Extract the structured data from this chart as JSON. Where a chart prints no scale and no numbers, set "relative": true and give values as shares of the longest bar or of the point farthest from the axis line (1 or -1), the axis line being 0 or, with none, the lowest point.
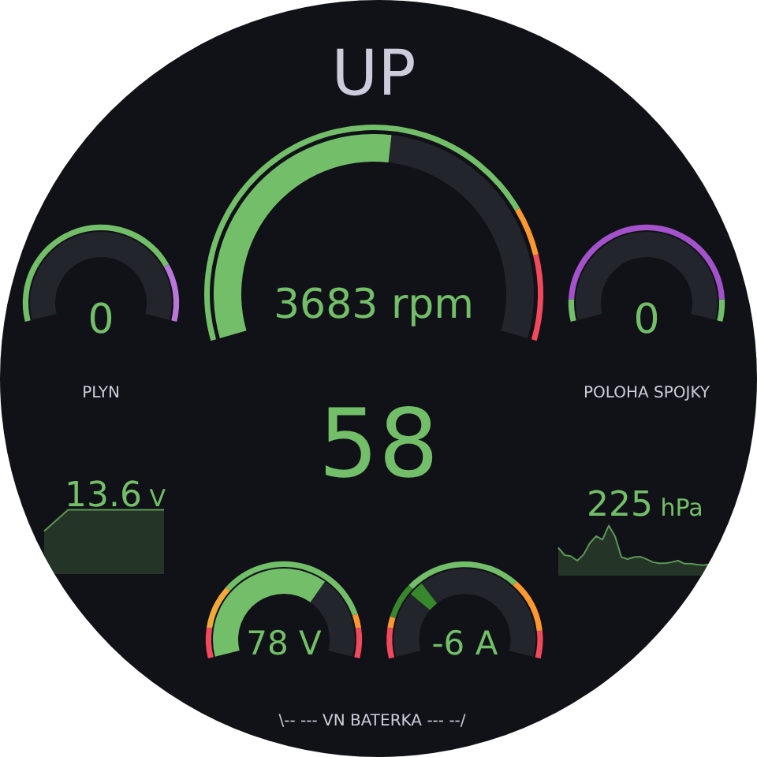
{
  "chart_data": [
    {
      "type": "donut",
      "title": "UP",
      "series": [
        {
          "values": [
            47,
            53
          ],
          "colors": [
            "#22252b",
            "#73bf69"
          ]
        },
        {
          "values": [
            14,
            8,
            78
          ],
          "colors": [
            "#f2495c",
            "#ff9830",
            "#73bf69"
          ]
        }
      ],
      "annotations": [
        "3683 rpm"
      ]
    },
    {
      "type": "donut",
      "title": "PLYN",
      "series": [
        {
          "values": [
            100
          ],
          "colors": [
            "#22252b"
          ]
        },
        {
          "values": [
            21,
            79
          ],
          "colors": [
            "#b877d9",
            "#73bf69"
          ]
        }
      ],
      "annotations": [
        "0"
      ]
    },
    {
      "type": "donut",
      "title": "POLOHA SPOJKY",
      "series": [
        {
          "values": [
            100
          ],
          "colors": [
            "#22252b"
          ]
        },
        {
          "values": [
            8,
            84,
            8
          ],
          "colors": [
            "#73bf69",
            "#a352cc",
            "#73bf69"
          ]
        }
      ],
      "annotations": [
        "0"
      ]
    },
    {
      "type": "other",
      "values": [
        58
      ],
      "data_labels": true,
      "color": "#73bf69"
    },
    {
      "type": "area",
      "relative": true,
      "categories": [
        null,
        null,
        null,
        null,
        null,
        null
      ],
      "values": [
        0.67,
        1,
        1,
        1,
        1,
        1
      ],
      "color": "#73bf69",
      "annotations": [
        "13.6 V"
      ]
    },
    {
      "type": "area",
      "relative": true,
      "categories": [
        null,
        null,
        null,
        null,
        null,
        null,
        null,
        null,
        null,
        null,
        null,
        null,
        null,
        null,
        null,
        null,
        null,
        null,
        null,
        null,
        null,
        null,
        null,
        null,
        null
      ],
      "values": [
        0.56,
        0.41,
        0.39,
        0.3,
        0.42,
        0.65,
        0.79,
        0.72,
        1,
        0.79,
        0.37,
        0.33,
        0.37,
        0.38,
        0.33,
        0.27,
        0.25,
        0.25,
        0.27,
        0.3,
        0.24,
        0.24,
        0.22,
        0.21,
        0.23
      ],
      "color": "#73bf69",
      "annotations": [
        "225 hPa"
      ]
    },
    {
      "type": "donut",
      "series": [
        {
          "values": [
            33,
            67
          ],
          "colors": [
            "#22252b",
            "#73bf69"
          ]
        },
        {
          "values": [
            11,
            5,
            57,
            16,
            11
          ],
          "colors": [
            "#f2495c",
            "#ff9830",
            "#73bf69",
            "#f2a93b",
            "#f2495c"
          ]
        }
      ],
      "annotations": [
        "78 V"
      ]
    },
    {
      "type": "donut",
      "series": [
        {
          "values": [
            68,
            6,
            26
          ],
          "colors": [
            "#22252b",
            "#37872d",
            "#22252b"
          ]
        },
        {
          "values": [
            10,
            20,
            42,
            13,
            4,
            11
          ],
          "colors": [
            "#f2495c",
            "#ff9830",
            "#73bf69",
            "#37872d",
            "#ff9830",
            "#f2495c"
          ]
        }
      ],
      "annotations": [
        "-6 A"
      ]
    },
    {
      "type": "other",
      "title": "\\-- --- VN BATERKA --- --/"
    }
  ]
}
